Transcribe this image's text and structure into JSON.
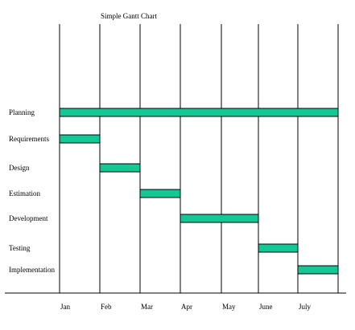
{
  "chart_data": {
    "type": "bar",
    "subtype": "gantt",
    "title": "Simple Gantt Chart",
    "months": [
      "Jan",
      "Feb",
      "Mar",
      "Apr",
      "May",
      "June",
      "July"
    ],
    "tasks": [
      {
        "name": "Planning",
        "start": 0,
        "end": 7
      },
      {
        "name": "Requirements",
        "start": 0,
        "end": 1
      },
      {
        "name": "Design",
        "start": 1,
        "end": 2
      },
      {
        "name": "Estimation",
        "start": 2,
        "end": 3
      },
      {
        "name": "Development",
        "start": 3,
        "end": 5
      },
      {
        "name": "Testing",
        "start": 5,
        "end": 6
      },
      {
        "name": "Implementation",
        "start": 6,
        "end": 7
      }
    ],
    "bar_color": "#14c896",
    "grid": true
  }
}
